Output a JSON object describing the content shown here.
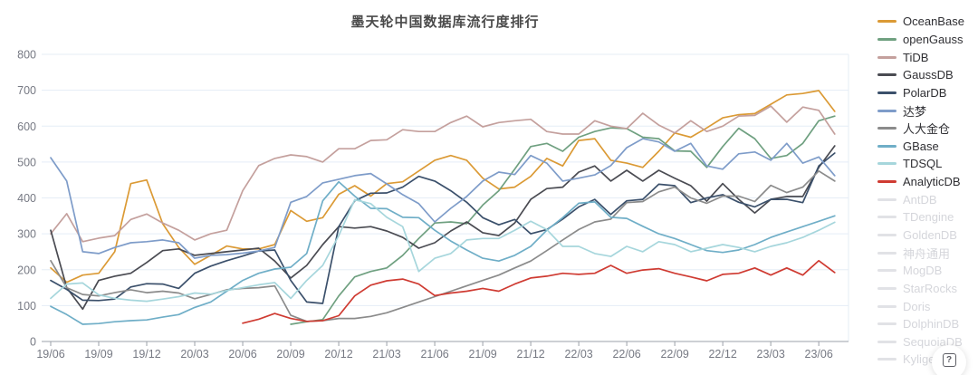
{
  "title": "墨天轮中国数据库流行度排行",
  "help_button": {
    "icon_glyph": "?"
  },
  "style": {
    "grid_color": "#E5EDF6",
    "axis_color": "#9BA0A8",
    "tick_text_color": "#767983",
    "title_color": "#4A4A4A",
    "inactive_color": "#D5D6DB",
    "inactive_swatch_color": "#E1E2E6"
  },
  "chart_data": {
    "type": "line",
    "title": "墨天轮中国数据库流行度排行",
    "xlabel": "",
    "ylabel": "",
    "ylim": [
      0,
      800
    ],
    "y_ticks": [
      0,
      100,
      200,
      300,
      400,
      500,
      600,
      700,
      800
    ],
    "grid": true,
    "legend_position": "right",
    "x_start_month": "19/06",
    "x_end_month": "23/07",
    "x_tick_labels": [
      "19/06",
      "19/09",
      "19/12",
      "20/03",
      "20/06",
      "20/09",
      "20/12",
      "21/03",
      "21/06",
      "21/09",
      "21/12",
      "22/03",
      "22/06",
      "22/09",
      "22/12",
      "23/03",
      "23/06"
    ],
    "series": [
      {
        "name": "OceanBase",
        "color": "#DB9A35",
        "active": true,
        "values": [
          205,
          165,
          185,
          190,
          250,
          440,
          450,
          328,
          262,
          215,
          240,
          266,
          258,
          258,
          270,
          365,
          335,
          345,
          410,
          434,
          405,
          440,
          445,
          475,
          505,
          518,
          505,
          455,
          425,
          430,
          460,
          510,
          489,
          560,
          565,
          505,
          497,
          485,
          530,
          581,
          569,
          595,
          623,
          632,
          635,
          661,
          687,
          691,
          699,
          641
        ]
      },
      {
        "name": "openGauss",
        "color": "#6FA080",
        "active": true,
        "values": [
          null,
          null,
          null,
          null,
          null,
          null,
          null,
          null,
          null,
          null,
          null,
          null,
          null,
          null,
          null,
          48,
          55,
          61,
          127,
          180,
          195,
          205,
          240,
          287,
          330,
          333,
          328,
          380,
          420,
          480,
          543,
          552,
          530,
          569,
          585,
          595,
          593,
          569,
          565,
          531,
          530,
          485,
          543,
          594,
          565,
          510,
          518,
          552,
          615,
          628
        ]
      },
      {
        "name": "TiDB",
        "color": "#C4A09D",
        "active": true,
        "values": [
          300,
          356,
          278,
          288,
          295,
          340,
          355,
          330,
          310,
          283,
          300,
          310,
          420,
          490,
          510,
          520,
          515,
          500,
          537,
          537,
          560,
          562,
          590,
          585,
          585,
          610,
          628,
          598,
          610,
          615,
          619,
          585,
          578,
          578,
          615,
          600,
          593,
          636,
          603,
          581,
          615,
          585,
          600,
          628,
          630,
          656,
          611,
          653,
          644,
          578
        ]
      },
      {
        "name": "GaussDB",
        "color": "#4A4B52",
        "active": true,
        "values": [
          310,
          150,
          90,
          170,
          182,
          190,
          220,
          253,
          258,
          240,
          245,
          250,
          255,
          260,
          224,
          177,
          212,
          270,
          320,
          316,
          320,
          308,
          290,
          260,
          275,
          308,
          333,
          303,
          295,
          330,
          396,
          426,
          430,
          472,
          489,
          447,
          477,
          447,
          477,
          455,
          434,
          391,
          440,
          396,
          358,
          396,
          404,
          404,
          485,
          545
        ]
      },
      {
        "name": "PolarDB",
        "color": "#3B506B",
        "active": true,
        "values": [
          170,
          145,
          115,
          114,
          118,
          152,
          161,
          160,
          148,
          190,
          210,
          225,
          238,
          252,
          255,
          170,
          110,
          106,
          320,
          392,
          413,
          414,
          430,
          460,
          447,
          420,
          388,
          345,
          325,
          340,
          300,
          312,
          341,
          375,
          396,
          354,
          392,
          396,
          438,
          434,
          387,
          400,
          409,
          388,
          375,
          396,
          396,
          387,
          489,
          525
        ]
      },
      {
        "name": "达梦",
        "color": "#7E9CC9",
        "active": true,
        "values": [
          512,
          447,
          250,
          245,
          262,
          275,
          278,
          283,
          275,
          232,
          240,
          242,
          246,
          252,
          262,
          388,
          404,
          442,
          452,
          462,
          468,
          439,
          409,
          384,
          333,
          371,
          404,
          447,
          472,
          465,
          518,
          497,
          447,
          455,
          464,
          490,
          540,
          565,
          556,
          530,
          552,
          489,
          480,
          523,
          528,
          505,
          552,
          497,
          514,
          462
        ]
      },
      {
        "name": "人大金仓",
        "color": "#8B8B8B",
        "active": true,
        "values": [
          225,
          150,
          131,
          127,
          136,
          144,
          136,
          140,
          135,
          119,
          131,
          144,
          148,
          150,
          155,
          73,
          56,
          58,
          64,
          64,
          70,
          80,
          95,
          110,
          125,
          140,
          155,
          170,
          185,
          205,
          224,
          253,
          283,
          312,
          333,
          341,
          387,
          390,
          417,
          430,
          400,
          385,
          405,
          405,
          390,
          435,
          415,
          430,
          475,
          447
        ]
      },
      {
        "name": "GBase",
        "color": "#6FAEC7",
        "active": true,
        "values": [
          98,
          75,
          48,
          50,
          55,
          58,
          60,
          68,
          75,
          95,
          110,
          140,
          170,
          190,
          202,
          207,
          245,
          392,
          445,
          405,
          371,
          370,
          346,
          345,
          310,
          280,
          255,
          232,
          224,
          240,
          265,
          310,
          345,
          385,
          389,
          346,
          343,
          321,
          300,
          287,
          270,
          253,
          248,
          255,
          270,
          290,
          305,
          320,
          335,
          350
        ]
      },
      {
        "name": "TDSQL",
        "color": "#A6D6DC",
        "active": true,
        "values": [
          120,
          160,
          163,
          130,
          120,
          115,
          112,
          118,
          125,
          135,
          132,
          142,
          150,
          158,
          164,
          120,
          170,
          212,
          295,
          395,
          384,
          346,
          320,
          195,
          232,
          245,
          283,
          287,
          287,
          310,
          335,
          312,
          265,
          265,
          245,
          237,
          265,
          250,
          278,
          270,
          250,
          260,
          270,
          262,
          250,
          265,
          275,
          290,
          310,
          332
        ]
      },
      {
        "name": "AnalyticDB",
        "color": "#CF3B32",
        "active": true,
        "values": [
          null,
          null,
          null,
          null,
          null,
          null,
          null,
          null,
          null,
          null,
          null,
          null,
          51,
          62,
          78,
          64,
          56,
          58,
          72,
          127,
          157,
          169,
          174,
          160,
          128,
          135,
          140,
          148,
          140,
          160,
          177,
          182,
          190,
          187,
          190,
          212,
          190,
          199,
          203,
          190,
          180,
          169,
          187,
          190,
          205,
          185,
          205,
          185,
          225,
          192
        ]
      },
      {
        "name": "AntDB",
        "active": false,
        "values": []
      },
      {
        "name": "TDengine",
        "active": false,
        "values": []
      },
      {
        "name": "GoldenDB",
        "active": false,
        "values": []
      },
      {
        "name": "神舟通用",
        "active": false,
        "values": []
      },
      {
        "name": "MogDB",
        "active": false,
        "values": []
      },
      {
        "name": "StarRocks",
        "active": false,
        "values": []
      },
      {
        "name": "Doris",
        "active": false,
        "values": []
      },
      {
        "name": "DolphinDB",
        "active": false,
        "values": []
      },
      {
        "name": "SequoiaDB",
        "active": false,
        "values": []
      },
      {
        "name": "Kylige",
        "active": false,
        "values": []
      }
    ]
  }
}
